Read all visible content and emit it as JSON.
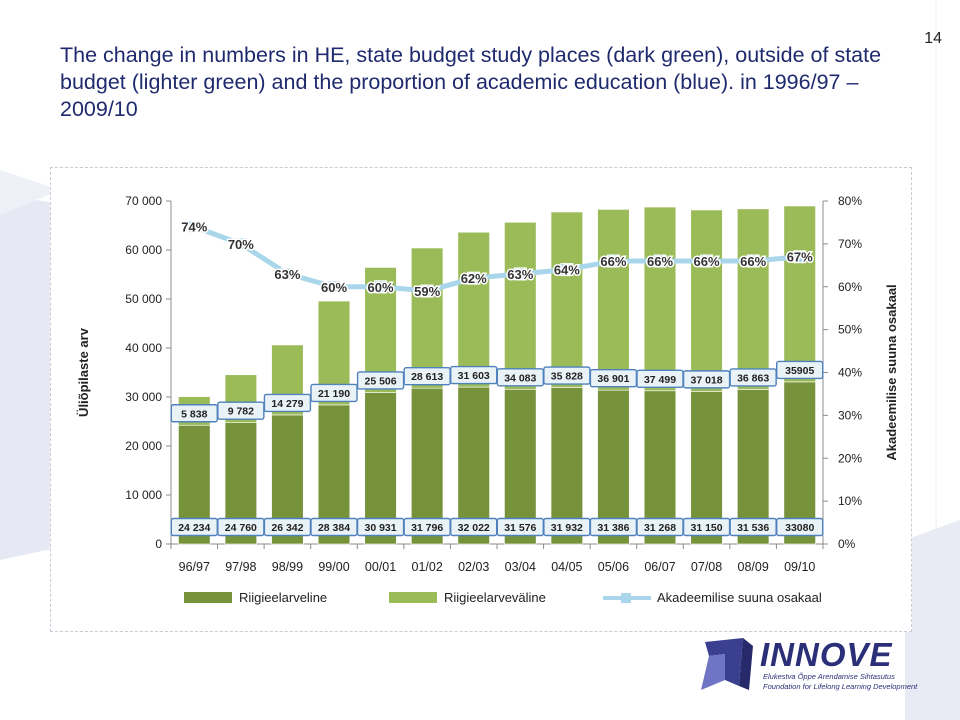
{
  "slide": {
    "page_number": "14",
    "title": "The change in numbers in HE, state budget study places (dark green), outside of state budget (lighter green) and the proportion of academic education (blue). in 1996/97 – 2009/10"
  },
  "logo": {
    "name": "INNOVE",
    "subtitle_et": "Elukestva Õppe Arendamise Sihtasutus",
    "subtitle_en": "Foundation for Lifelong Learning Development"
  },
  "colors": {
    "dark_green": "#76933c",
    "light_green": "#9bbb59",
    "line_blue": "#a9d6ea",
    "label_box_fill": "#e9f2f7",
    "label_box_border": "#4f81bd",
    "title": "#1f2a6e"
  },
  "chart_data": {
    "type": "bar",
    "stacked": true,
    "categories": [
      "96/97",
      "97/98",
      "98/99",
      "99/00",
      "00/01",
      "01/02",
      "02/03",
      "03/04",
      "04/05",
      "05/06",
      "06/07",
      "07/08",
      "08/09",
      "09/10"
    ],
    "series": [
      {
        "name": "Riigieelarveline",
        "type": "bar",
        "axis": "left",
        "color": "#76933c",
        "values": [
          24234,
          24760,
          26342,
          28384,
          30931,
          31796,
          32022,
          31576,
          31932,
          31386,
          31268,
          31150,
          31536,
          33080
        ],
        "labels": [
          "24 234",
          "24 760",
          "26 342",
          "28 384",
          "30 931",
          "31 796",
          "32 022",
          "31 576",
          "31 932",
          "31 386",
          "31 268",
          "31 150",
          "31 536",
          "33080"
        ]
      },
      {
        "name": "Riigieelarveväline",
        "type": "bar",
        "axis": "left",
        "color": "#9bbb59",
        "values": [
          5838,
          9782,
          14279,
          21190,
          25506,
          28613,
          31603,
          34083,
          35828,
          36901,
          37499,
          37018,
          36863,
          35905
        ],
        "labels": [
          "5 838",
          "9 782",
          "14 279",
          "21 190",
          "25 506",
          "28 613",
          "31 603",
          "34 083",
          "35 828",
          "36 901",
          "37 499",
          "37 018",
          "36 863",
          "35905"
        ]
      },
      {
        "name": "Akadeemilise suuna osakaal",
        "type": "line",
        "axis": "right",
        "color": "#a9d6ea",
        "values": [
          74,
          70,
          63,
          60,
          60,
          59,
          62,
          63,
          64,
          66,
          66,
          66,
          66,
          67
        ],
        "labels": [
          "74%",
          "70%",
          "63%",
          "60%",
          "60%",
          "59%",
          "62%",
          "63%",
          "64%",
          "66%",
          "66%",
          "66%",
          "66%",
          "67%"
        ]
      }
    ],
    "ylabel": "Üliõpilaste arv",
    "y2label": "Akadeemilise suuna osakaal",
    "ylim": [
      0,
      70000
    ],
    "yticks": [
      0,
      10000,
      20000,
      30000,
      40000,
      50000,
      60000,
      70000
    ],
    "ytick_labels": [
      "0",
      "10 000",
      "20 000",
      "30 000",
      "40 000",
      "50 000",
      "60 000",
      "70 000"
    ],
    "y2lim": [
      0,
      80
    ],
    "y2ticks": [
      0,
      10,
      20,
      30,
      40,
      50,
      60,
      70,
      80
    ],
    "y2tick_labels": [
      "0%",
      "10%",
      "20%",
      "30%",
      "40%",
      "50%",
      "60%",
      "70%",
      "80%"
    ],
    "grid": false,
    "legend_position": "bottom"
  }
}
